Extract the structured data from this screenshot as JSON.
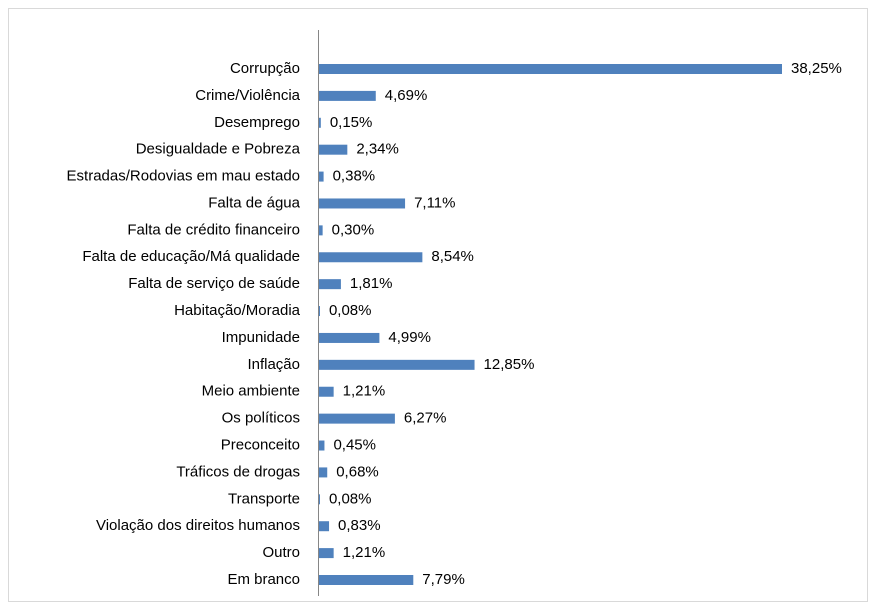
{
  "chart_data": {
    "type": "bar",
    "orientation": "horizontal",
    "categories": [
      "Corrupção",
      "Crime/Violência",
      "Desemprego",
      "Desigualdade e Pobreza",
      "Estradas/Rodovias em mau estado",
      "Falta de água",
      "Falta de crédito financeiro",
      "Falta de educação/Má qualidade",
      "Falta de serviço de saúde",
      "Habitação/Moradia",
      "Impunidade",
      "Inflação",
      "Meio ambiente",
      "Os políticos",
      "Preconceito",
      "Tráficos de drogas",
      "Transporte",
      "Violação dos direitos humanos",
      "Outro",
      "Em branco"
    ],
    "values": [
      38.25,
      4.69,
      0.15,
      2.34,
      0.38,
      7.11,
      0.3,
      8.54,
      1.81,
      0.08,
      4.99,
      12.85,
      1.21,
      6.27,
      0.45,
      0.68,
      0.08,
      0.83,
      1.21,
      7.79
    ],
    "value_labels": [
      "38,25%",
      "4,69%",
      "0,15%",
      "2,34%",
      "0,38%",
      "7,11%",
      "0,30%",
      "8,54%",
      "1,81%",
      "0,08%",
      "4,99%",
      "12,85%",
      "1,21%",
      "6,27%",
      "0,45%",
      "0,68%",
      "0,08%",
      "0,83%",
      "1,21%",
      "7,79%"
    ],
    "color": "#4f81bd"
  }
}
